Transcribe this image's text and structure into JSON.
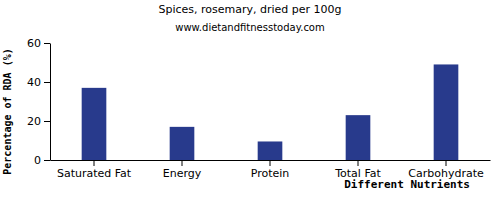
{
  "chart_data": {
    "type": "bar",
    "title": "Spices, rosemary, dried per 100g",
    "subtitle": "www.dietandfitnesstoday.com",
    "x_label": "Different Nutrients",
    "y_label": "Percentage of RDA (%)",
    "categories": [
      "Saturated Fat",
      "Energy",
      "Protein",
      "Total Fat",
      "Carbohydrate"
    ],
    "values": [
      37,
      17,
      9.5,
      23,
      49
    ],
    "color": "#283a8c",
    "ylim": [
      0,
      60
    ],
    "yticks": [
      0,
      20,
      40,
      60
    ],
    "grid": false
  }
}
